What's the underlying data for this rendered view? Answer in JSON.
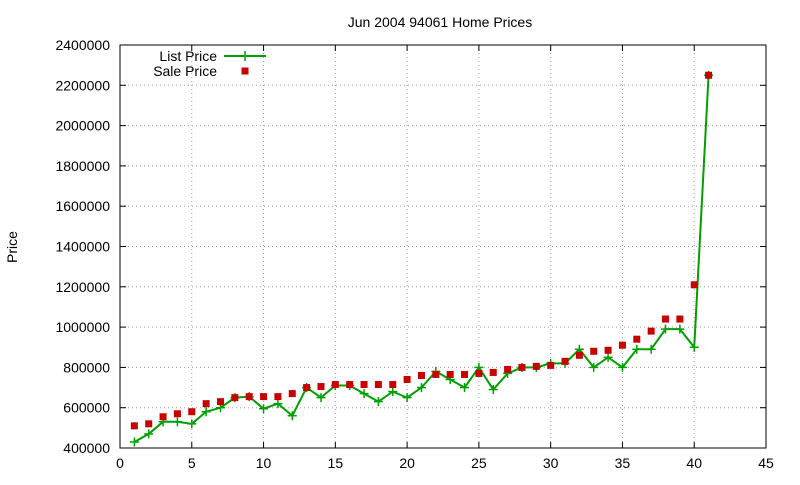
{
  "chart_data": {
    "type": "scatter",
    "title": "Jun 2004 94061 Home Prices",
    "xlabel": "",
    "ylabel": "Price",
    "xlim": [
      0,
      45
    ],
    "ylim": [
      400000,
      2400000
    ],
    "xticks": [
      0,
      5,
      10,
      15,
      20,
      25,
      30,
      35,
      40,
      45
    ],
    "yticks": [
      400000,
      600000,
      800000,
      1000000,
      1200000,
      1400000,
      1600000,
      1800000,
      2000000,
      2200000,
      2400000
    ],
    "grid": true,
    "legend_position": "top-left",
    "series": [
      {
        "name": "List Price",
        "style": "line-with-plus-markers",
        "color": "#00a000",
        "x": [
          1,
          2,
          3,
          4,
          5,
          6,
          7,
          8,
          9,
          10,
          11,
          12,
          13,
          14,
          15,
          16,
          17,
          18,
          19,
          20,
          21,
          22,
          23,
          24,
          25,
          26,
          27,
          28,
          29,
          30,
          31,
          32,
          33,
          34,
          35,
          36,
          37,
          38,
          39,
          40,
          41
        ],
        "y": [
          430000,
          470000,
          530000,
          530000,
          520000,
          580000,
          600000,
          650000,
          655000,
          595000,
          620000,
          560000,
          700000,
          650000,
          710000,
          710000,
          670000,
          630000,
          680000,
          650000,
          700000,
          780000,
          740000,
          700000,
          800000,
          690000,
          770000,
          800000,
          800000,
          820000,
          820000,
          890000,
          800000,
          850000,
          800000,
          890000,
          890000,
          990000,
          990000,
          900000,
          2250000
        ]
      },
      {
        "name": "Sale Price",
        "style": "square-markers",
        "color": "#c80000",
        "x": [
          1,
          2,
          3,
          4,
          5,
          6,
          7,
          8,
          9,
          10,
          11,
          12,
          13,
          14,
          15,
          16,
          17,
          18,
          19,
          20,
          21,
          22,
          23,
          24,
          25,
          26,
          27,
          28,
          29,
          30,
          31,
          32,
          33,
          34,
          35,
          36,
          37,
          38,
          39,
          40,
          41
        ],
        "y": [
          510000,
          520000,
          555000,
          570000,
          580000,
          620000,
          630000,
          650000,
          655000,
          655000,
          655000,
          670000,
          700000,
          705000,
          715000,
          715000,
          715000,
          715000,
          715000,
          740000,
          760000,
          765000,
          765000,
          765000,
          770000,
          775000,
          790000,
          800000,
          805000,
          810000,
          830000,
          860000,
          880000,
          885000,
          910000,
          940000,
          980000,
          1040000,
          1040000,
          1210000,
          2250000
        ]
      }
    ]
  }
}
